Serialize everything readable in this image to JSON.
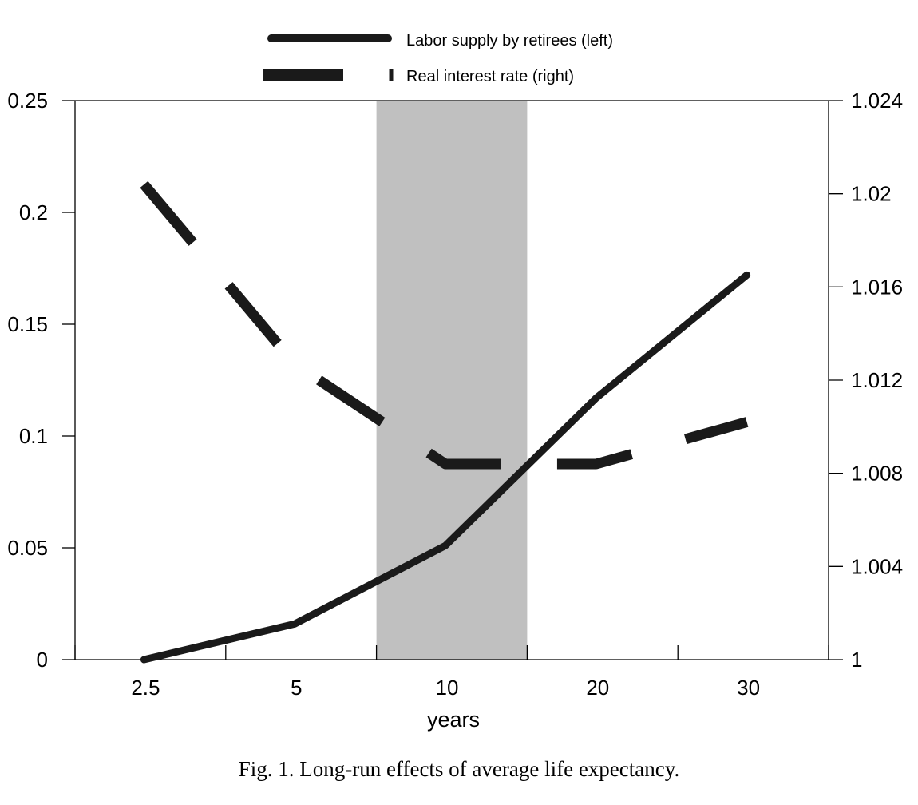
{
  "caption": "Fig. 1.  Long-run effects of average life expectancy.",
  "chart_data": {
    "type": "line",
    "xlabel": "years",
    "categories": [
      "2.5",
      "5",
      "10",
      "20",
      "30"
    ],
    "y_left": {
      "ylim": [
        0,
        0.25
      ],
      "ticks": [
        0,
        0.05,
        0.1,
        0.15,
        0.2,
        0.25
      ],
      "tick_labels": [
        "0",
        "0.05",
        "0.1",
        "0.15",
        "0.2",
        "0.25"
      ]
    },
    "y_right": {
      "ylim": [
        1,
        1.024
      ],
      "ticks": [
        1,
        1.004,
        1.008,
        1.012,
        1.016,
        1.02,
        1.024
      ],
      "tick_labels": [
        "1",
        "1.004",
        "1.008",
        "1.012",
        "1.016",
        "1.02",
        "1.024"
      ]
    },
    "shaded_region": {
      "from_category": "10",
      "to_category": "20",
      "color": "#c0c0c0"
    },
    "series": [
      {
        "name": "Labor supply by retirees (left)",
        "axis": "left",
        "style": "solid",
        "color": "#1a1a1a",
        "x": [
          "2.5",
          "5",
          "10",
          "20",
          "30"
        ],
        "values": [
          0,
          0.016,
          0.051,
          0.117,
          0.172
        ]
      },
      {
        "name": "Real interest rate (right)",
        "axis": "right",
        "style": "dashed",
        "color": "#1a1a1a",
        "x": [
          "2.5",
          "5",
          "10",
          "20",
          "30"
        ],
        "values": [
          1.0204,
          1.0127,
          1.0084,
          1.0084,
          1.0102
        ]
      }
    ],
    "legend": "top-center",
    "grid": false
  }
}
